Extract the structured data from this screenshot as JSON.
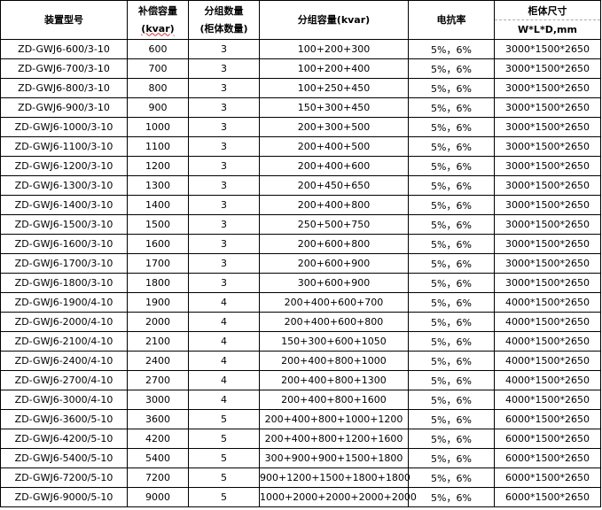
{
  "headers": {
    "model": "装置型号",
    "capacity_line1": "补偿容量",
    "capacity_line2": "(kvar)",
    "groups_line1": "分组数量",
    "groups_line2": "(柜体数量)",
    "group_capacity": "分组容量(kvar)",
    "reactance": "电抗率",
    "size_line1": "柜体尺寸",
    "size_line2": "W*L*D,mm"
  },
  "rows": [
    [
      "ZD-GWJ6-600/3-10",
      "600",
      "3",
      "100+200+300",
      "5%，6%",
      "3000*1500*2650"
    ],
    [
      "ZD-GWJ6-700/3-10",
      "700",
      "3",
      "100+200+400",
      "5%，6%",
      "3000*1500*2650"
    ],
    [
      "ZD-GWJ6-800/3-10",
      "800",
      "3",
      "100+250+450",
      "5%，6%",
      "3000*1500*2650"
    ],
    [
      "ZD-GWJ6-900/3-10",
      "900",
      "3",
      "150+300+450",
      "5%，6%",
      "3000*1500*2650"
    ],
    [
      "ZD-GWJ6-1000/3-10",
      "1000",
      "3",
      "200+300+500",
      "5%，6%",
      "3000*1500*2650"
    ],
    [
      "ZD-GWJ6-1100/3-10",
      "1100",
      "3",
      "200+400+500",
      "5%，6%",
      "3000*1500*2650"
    ],
    [
      "ZD-GWJ6-1200/3-10",
      "1200",
      "3",
      "200+400+600",
      "5%，6%",
      "3000*1500*2650"
    ],
    [
      "ZD-GWJ6-1300/3-10",
      "1300",
      "3",
      "200+450+650",
      "5%，6%",
      "3000*1500*2650"
    ],
    [
      "ZD-GWJ6-1400/3-10",
      "1400",
      "3",
      "200+400+800",
      "5%，6%",
      "3000*1500*2650"
    ],
    [
      "ZD-GWJ6-1500/3-10",
      "1500",
      "3",
      "250+500+750",
      "5%，6%",
      "3000*1500*2650"
    ],
    [
      "ZD-GWJ6-1600/3-10",
      "1600",
      "3",
      "200+600+800",
      "5%，6%",
      "3000*1500*2650"
    ],
    [
      "ZD-GWJ6-1700/3-10",
      "1700",
      "3",
      "200+600+900",
      "5%，6%",
      "3000*1500*2650"
    ],
    [
      "ZD-GWJ6-1800/3-10",
      "1800",
      "3",
      "300+600+900",
      "5%，6%",
      "3000*1500*2650"
    ],
    [
      "ZD-GWJ6-1900/4-10",
      "1900",
      "4",
      "200+400+600+700",
      "5%，6%",
      "4000*1500*2650"
    ],
    [
      "ZD-GWJ6-2000/4-10",
      "2000",
      "4",
      "200+400+600+800",
      "5%，6%",
      "4000*1500*2650"
    ],
    [
      "ZD-GWJ6-2100/4-10",
      "2100",
      "4",
      "150+300+600+1050",
      "5%，6%",
      "4000*1500*2650"
    ],
    [
      "ZD-GWJ6-2400/4-10",
      "2400",
      "4",
      "200+400+800+1000",
      "5%，6%",
      "4000*1500*2650"
    ],
    [
      "ZD-GWJ6-2700/4-10",
      "2700",
      "4",
      "200+400+800+1300",
      "5%，6%",
      "4000*1500*2650"
    ],
    [
      "ZD-GWJ6-3000/4-10",
      "3000",
      "4",
      "200+400+800+1600",
      "5%，6%",
      "4000*1500*2650"
    ],
    [
      "ZD-GWJ6-3600/5-10",
      "3600",
      "5",
      "200+400+800+1000+1200",
      "5%，6%",
      "6000*1500*2650"
    ],
    [
      "ZD-GWJ6-4200/5-10",
      "4200",
      "5",
      "200+400+800+1200+1600",
      "5%，6%",
      "6000*1500*2650"
    ],
    [
      "ZD-GWJ6-5400/5-10",
      "5400",
      "5",
      "300+900+900+1500+1800",
      "5%，6%",
      "6000*1500*2650"
    ],
    [
      "ZD-GWJ6-7200/5-10",
      "7200",
      "5",
      "900+1200+1500+1800+1800",
      "5%，6%",
      "6000*1500*2650"
    ],
    [
      "ZD-GWJ6-9000/5-10",
      "9000",
      "5",
      "1000+2000+2000+2000+2000",
      "5%，6%",
      "6000*1500*2650"
    ]
  ]
}
